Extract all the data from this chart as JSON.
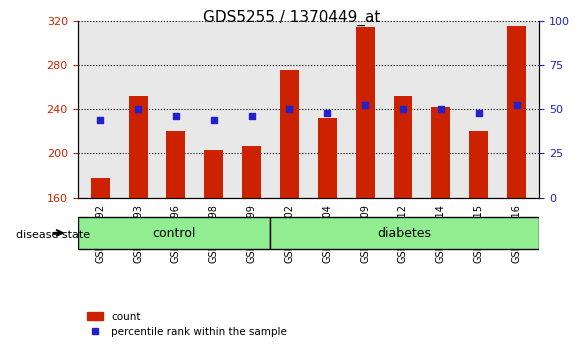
{
  "title": "GDS5255 / 1370449_at",
  "categories": [
    "GSM399092",
    "GSM399093",
    "GSM399096",
    "GSM399098",
    "GSM399099",
    "GSM399102",
    "GSM399104",
    "GSM399109",
    "GSM399112",
    "GSM399114",
    "GSM399115",
    "GSM399116"
  ],
  "bar_values": [
    178,
    252,
    220,
    203,
    207,
    275,
    232,
    314,
    252,
    242,
    220,
    315
  ],
  "percentile_values": [
    44,
    50,
    46,
    44,
    46,
    50,
    48,
    52,
    50,
    50,
    48,
    52
  ],
  "ylim_left": [
    160,
    320
  ],
  "ylim_right": [
    0,
    100
  ],
  "yticks_left": [
    160,
    200,
    240,
    280,
    320
  ],
  "yticks_right": [
    0,
    25,
    50,
    75,
    100
  ],
  "bar_color": "#cc2200",
  "marker_color": "#2222cc",
  "control_group": [
    "GSM399092",
    "GSM399093",
    "GSM399096",
    "GSM399098",
    "GSM399099"
  ],
  "diabetes_group": [
    "GSM399102",
    "GSM399104",
    "GSM399109",
    "GSM399112",
    "GSM399114",
    "GSM399115",
    "GSM399116"
  ],
  "control_label": "control",
  "diabetes_label": "diabetes",
  "disease_state_label": "disease state",
  "legend_count": "count",
  "legend_percentile": "percentile rank within the sample",
  "background_color": "#ffffff",
  "plot_bg_color": "#e8e8e8",
  "group_bar_color_control": "#90ee90",
  "group_bar_color_diabetes": "#90ee90"
}
